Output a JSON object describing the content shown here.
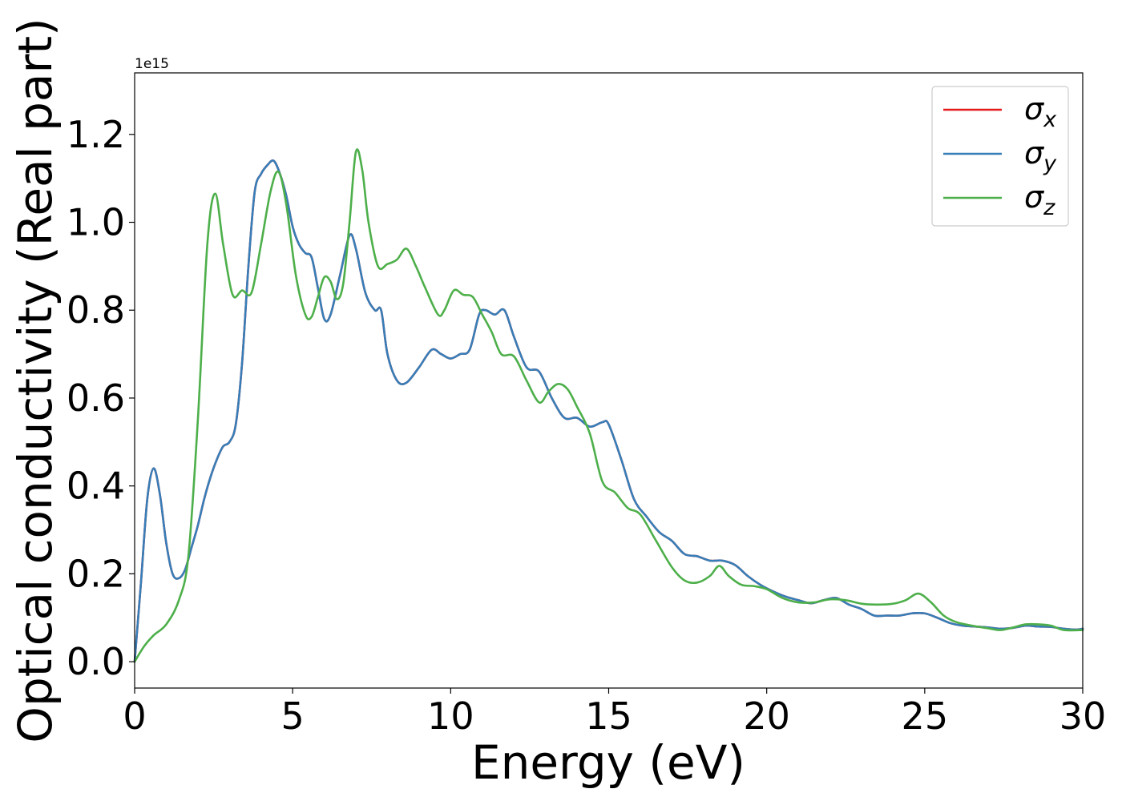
{
  "chart_data": {
    "type": "line",
    "xlabel": "Energy (eV)",
    "ylabel": "Optical conductivity (Real part)",
    "y_offset_text": "1e15",
    "xlim": [
      0,
      30
    ],
    "ylim": [
      -0.06,
      1.34
    ],
    "xticks": [
      0,
      5,
      10,
      15,
      20,
      25,
      30
    ],
    "xtick_labels": [
      "0",
      "5",
      "10",
      "15",
      "20",
      "25",
      "30"
    ],
    "yticks": [
      0.0,
      0.2,
      0.4,
      0.6,
      0.8,
      1.0,
      1.2
    ],
    "ytick_labels": [
      "0.0",
      "0.2",
      "0.4",
      "0.6",
      "0.8",
      "1.0",
      "1.2"
    ],
    "grid": false,
    "legend": {
      "position": "top-right",
      "entries": [
        {
          "base": "σ",
          "sub": "x",
          "color": "#e41a1c"
        },
        {
          "base": "σ",
          "sub": "y",
          "color": "#377eb8"
        },
        {
          "base": "σ",
          "sub": "z",
          "color": "#4daf4a"
        }
      ]
    },
    "series": [
      {
        "color": "#e41a1c",
        "points": [
          [
            0,
            0
          ],
          [
            0.2,
            0.18
          ],
          [
            0.4,
            0.37
          ],
          [
            0.6,
            0.44
          ],
          [
            0.8,
            0.38
          ],
          [
            1.0,
            0.27
          ],
          [
            1.2,
            0.2
          ],
          [
            1.4,
            0.19
          ],
          [
            1.6,
            0.21
          ],
          [
            1.8,
            0.26
          ],
          [
            2.0,
            0.31
          ],
          [
            2.2,
            0.37
          ],
          [
            2.4,
            0.42
          ],
          [
            2.6,
            0.46
          ],
          [
            2.8,
            0.49
          ],
          [
            3.0,
            0.5
          ],
          [
            3.2,
            0.54
          ],
          [
            3.4,
            0.68
          ],
          [
            3.6,
            0.9
          ],
          [
            3.8,
            1.07
          ],
          [
            4.0,
            1.11
          ],
          [
            4.2,
            1.13
          ],
          [
            4.4,
            1.14
          ],
          [
            4.6,
            1.11
          ],
          [
            4.8,
            1.06
          ],
          [
            5.0,
            0.99
          ],
          [
            5.2,
            0.95
          ],
          [
            5.4,
            0.93
          ],
          [
            5.6,
            0.92
          ],
          [
            5.8,
            0.85
          ],
          [
            6.0,
            0.78
          ],
          [
            6.2,
            0.79
          ],
          [
            6.5,
            0.88
          ],
          [
            6.8,
            0.97
          ],
          [
            7.0,
            0.94
          ],
          [
            7.3,
            0.84
          ],
          [
            7.6,
            0.8
          ],
          [
            7.8,
            0.8
          ],
          [
            8.0,
            0.7
          ],
          [
            8.3,
            0.64
          ],
          [
            8.6,
            0.635
          ],
          [
            9.0,
            0.67
          ],
          [
            9.4,
            0.71
          ],
          [
            9.7,
            0.7
          ],
          [
            10.0,
            0.69
          ],
          [
            10.3,
            0.7
          ],
          [
            10.6,
            0.71
          ],
          [
            10.9,
            0.79
          ],
          [
            11.1,
            0.8
          ],
          [
            11.4,
            0.79
          ],
          [
            11.7,
            0.8
          ],
          [
            12.0,
            0.74
          ],
          [
            12.4,
            0.67
          ],
          [
            12.8,
            0.66
          ],
          [
            13.2,
            0.6
          ],
          [
            13.6,
            0.555
          ],
          [
            14.0,
            0.555
          ],
          [
            14.4,
            0.535
          ],
          [
            14.8,
            0.545
          ],
          [
            15.0,
            0.54
          ],
          [
            15.4,
            0.46
          ],
          [
            15.8,
            0.37
          ],
          [
            16.2,
            0.33
          ],
          [
            16.6,
            0.295
          ],
          [
            17.0,
            0.275
          ],
          [
            17.4,
            0.245
          ],
          [
            17.8,
            0.24
          ],
          [
            18.2,
            0.23
          ],
          [
            18.6,
            0.23
          ],
          [
            19.0,
            0.22
          ],
          [
            19.4,
            0.195
          ],
          [
            19.8,
            0.175
          ],
          [
            20.2,
            0.16
          ],
          [
            20.6,
            0.148
          ],
          [
            21.0,
            0.14
          ],
          [
            21.4,
            0.133
          ],
          [
            21.8,
            0.14
          ],
          [
            22.2,
            0.145
          ],
          [
            22.6,
            0.13
          ],
          [
            23.0,
            0.12
          ],
          [
            23.4,
            0.105
          ],
          [
            23.8,
            0.105
          ],
          [
            24.2,
            0.105
          ],
          [
            24.6,
            0.11
          ],
          [
            25.0,
            0.11
          ],
          [
            25.4,
            0.1
          ],
          [
            25.8,
            0.088
          ],
          [
            26.2,
            0.082
          ],
          [
            26.6,
            0.08
          ],
          [
            27.0,
            0.078
          ],
          [
            27.4,
            0.075
          ],
          [
            27.8,
            0.077
          ],
          [
            28.2,
            0.082
          ],
          [
            28.6,
            0.08
          ],
          [
            29.0,
            0.079
          ],
          [
            29.4,
            0.075
          ],
          [
            29.8,
            0.073
          ],
          [
            30.0,
            0.075
          ]
        ]
      },
      {
        "color": "#377eb8",
        "points": [
          [
            0,
            0
          ],
          [
            0.2,
            0.18
          ],
          [
            0.4,
            0.37
          ],
          [
            0.6,
            0.44
          ],
          [
            0.8,
            0.38
          ],
          [
            1.0,
            0.27
          ],
          [
            1.2,
            0.2
          ],
          [
            1.4,
            0.19
          ],
          [
            1.6,
            0.21
          ],
          [
            1.8,
            0.26
          ],
          [
            2.0,
            0.31
          ],
          [
            2.2,
            0.37
          ],
          [
            2.4,
            0.42
          ],
          [
            2.6,
            0.46
          ],
          [
            2.8,
            0.49
          ],
          [
            3.0,
            0.5
          ],
          [
            3.2,
            0.54
          ],
          [
            3.4,
            0.68
          ],
          [
            3.6,
            0.9
          ],
          [
            3.8,
            1.07
          ],
          [
            4.0,
            1.11
          ],
          [
            4.2,
            1.13
          ],
          [
            4.4,
            1.14
          ],
          [
            4.6,
            1.11
          ],
          [
            4.8,
            1.06
          ],
          [
            5.0,
            0.99
          ],
          [
            5.2,
            0.95
          ],
          [
            5.4,
            0.93
          ],
          [
            5.6,
            0.92
          ],
          [
            5.8,
            0.85
          ],
          [
            6.0,
            0.78
          ],
          [
            6.2,
            0.79
          ],
          [
            6.5,
            0.88
          ],
          [
            6.8,
            0.97
          ],
          [
            7.0,
            0.94
          ],
          [
            7.3,
            0.84
          ],
          [
            7.6,
            0.8
          ],
          [
            7.8,
            0.8
          ],
          [
            8.0,
            0.7
          ],
          [
            8.3,
            0.64
          ],
          [
            8.6,
            0.635
          ],
          [
            9.0,
            0.67
          ],
          [
            9.4,
            0.71
          ],
          [
            9.7,
            0.7
          ],
          [
            10.0,
            0.69
          ],
          [
            10.3,
            0.7
          ],
          [
            10.6,
            0.71
          ],
          [
            10.9,
            0.79
          ],
          [
            11.1,
            0.8
          ],
          [
            11.4,
            0.79
          ],
          [
            11.7,
            0.8
          ],
          [
            12.0,
            0.74
          ],
          [
            12.4,
            0.67
          ],
          [
            12.8,
            0.66
          ],
          [
            13.2,
            0.6
          ],
          [
            13.6,
            0.555
          ],
          [
            14.0,
            0.555
          ],
          [
            14.4,
            0.535
          ],
          [
            14.8,
            0.545
          ],
          [
            15.0,
            0.54
          ],
          [
            15.4,
            0.46
          ],
          [
            15.8,
            0.37
          ],
          [
            16.2,
            0.33
          ],
          [
            16.6,
            0.295
          ],
          [
            17.0,
            0.275
          ],
          [
            17.4,
            0.245
          ],
          [
            17.8,
            0.24
          ],
          [
            18.2,
            0.23
          ],
          [
            18.6,
            0.23
          ],
          [
            19.0,
            0.22
          ],
          [
            19.4,
            0.195
          ],
          [
            19.8,
            0.175
          ],
          [
            20.2,
            0.16
          ],
          [
            20.6,
            0.148
          ],
          [
            21.0,
            0.14
          ],
          [
            21.4,
            0.133
          ],
          [
            21.8,
            0.14
          ],
          [
            22.2,
            0.145
          ],
          [
            22.6,
            0.13
          ],
          [
            23.0,
            0.12
          ],
          [
            23.4,
            0.105
          ],
          [
            23.8,
            0.105
          ],
          [
            24.2,
            0.105
          ],
          [
            24.6,
            0.11
          ],
          [
            25.0,
            0.11
          ],
          [
            25.4,
            0.1
          ],
          [
            25.8,
            0.088
          ],
          [
            26.2,
            0.082
          ],
          [
            26.6,
            0.08
          ],
          [
            27.0,
            0.078
          ],
          [
            27.4,
            0.075
          ],
          [
            27.8,
            0.077
          ],
          [
            28.2,
            0.082
          ],
          [
            28.6,
            0.08
          ],
          [
            29.0,
            0.079
          ],
          [
            29.4,
            0.075
          ],
          [
            29.8,
            0.073
          ],
          [
            30.0,
            0.075
          ]
        ]
      },
      {
        "color": "#4daf4a",
        "points": [
          [
            0,
            0
          ],
          [
            0.3,
            0.035
          ],
          [
            0.6,
            0.06
          ],
          [
            1.0,
            0.085
          ],
          [
            1.4,
            0.14
          ],
          [
            1.7,
            0.24
          ],
          [
            2.0,
            0.55
          ],
          [
            2.3,
            0.95
          ],
          [
            2.55,
            1.065
          ],
          [
            2.8,
            0.95
          ],
          [
            3.1,
            0.835
          ],
          [
            3.4,
            0.845
          ],
          [
            3.7,
            0.84
          ],
          [
            4.0,
            0.95
          ],
          [
            4.3,
            1.07
          ],
          [
            4.55,
            1.115
          ],
          [
            4.8,
            1.04
          ],
          [
            5.1,
            0.88
          ],
          [
            5.4,
            0.79
          ],
          [
            5.6,
            0.785
          ],
          [
            5.8,
            0.83
          ],
          [
            6.0,
            0.875
          ],
          [
            6.2,
            0.865
          ],
          [
            6.4,
            0.825
          ],
          [
            6.6,
            0.86
          ],
          [
            6.8,
            1.0
          ],
          [
            7.0,
            1.16
          ],
          [
            7.2,
            1.12
          ],
          [
            7.4,
            1.0
          ],
          [
            7.7,
            0.9
          ],
          [
            8.0,
            0.905
          ],
          [
            8.3,
            0.915
          ],
          [
            8.6,
            0.94
          ],
          [
            8.9,
            0.9
          ],
          [
            9.2,
            0.85
          ],
          [
            9.6,
            0.79
          ],
          [
            9.8,
            0.8
          ],
          [
            10.1,
            0.845
          ],
          [
            10.4,
            0.835
          ],
          [
            10.7,
            0.83
          ],
          [
            11.0,
            0.79
          ],
          [
            11.3,
            0.75
          ],
          [
            11.6,
            0.7
          ],
          [
            12.0,
            0.695
          ],
          [
            12.4,
            0.64
          ],
          [
            12.8,
            0.59
          ],
          [
            13.1,
            0.615
          ],
          [
            13.4,
            0.632
          ],
          [
            13.7,
            0.62
          ],
          [
            14.0,
            0.58
          ],
          [
            14.4,
            0.52
          ],
          [
            14.8,
            0.41
          ],
          [
            15.2,
            0.385
          ],
          [
            15.6,
            0.35
          ],
          [
            16.0,
            0.335
          ],
          [
            16.5,
            0.275
          ],
          [
            17.0,
            0.215
          ],
          [
            17.4,
            0.185
          ],
          [
            17.8,
            0.18
          ],
          [
            18.2,
            0.195
          ],
          [
            18.5,
            0.218
          ],
          [
            18.8,
            0.195
          ],
          [
            19.2,
            0.175
          ],
          [
            19.6,
            0.172
          ],
          [
            20.0,
            0.165
          ],
          [
            20.5,
            0.145
          ],
          [
            21.0,
            0.135
          ],
          [
            21.5,
            0.135
          ],
          [
            22.0,
            0.142
          ],
          [
            22.5,
            0.14
          ],
          [
            23.0,
            0.132
          ],
          [
            23.5,
            0.13
          ],
          [
            24.0,
            0.132
          ],
          [
            24.4,
            0.14
          ],
          [
            24.8,
            0.155
          ],
          [
            25.2,
            0.135
          ],
          [
            25.6,
            0.105
          ],
          [
            26.0,
            0.09
          ],
          [
            26.5,
            0.082
          ],
          [
            27.0,
            0.076
          ],
          [
            27.4,
            0.072
          ],
          [
            27.8,
            0.078
          ],
          [
            28.2,
            0.085
          ],
          [
            28.6,
            0.085
          ],
          [
            29.0,
            0.082
          ],
          [
            29.4,
            0.072
          ],
          [
            30.0,
            0.072
          ]
        ]
      }
    ]
  }
}
